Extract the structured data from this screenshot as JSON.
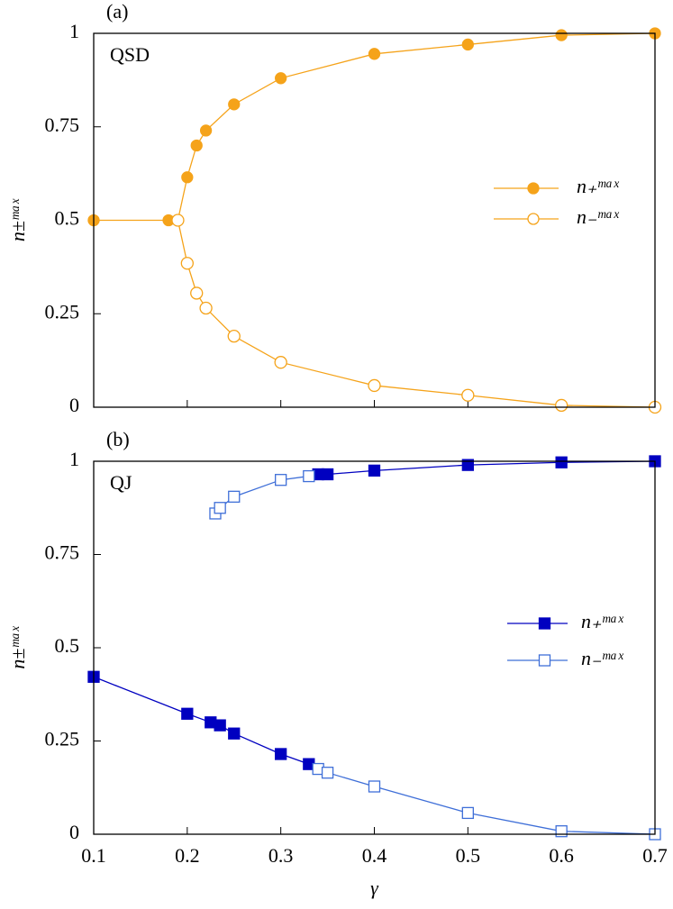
{
  "chart_data": [
    {
      "type": "line",
      "panel_label": "(a)",
      "annotation": "QSD",
      "ylabel": "n±ᵐᵃˣ",
      "xlim": [
        0.1,
        0.7
      ],
      "xticks": [
        0.1,
        0.2,
        0.3,
        0.4,
        0.5,
        0.6,
        0.7
      ],
      "xtick_labels": false,
      "ylim": [
        0,
        1
      ],
      "yticks": [
        0,
        0.25,
        0.5,
        0.75,
        1
      ],
      "legend": "right",
      "series": [
        {
          "name": "n₊ᵐᵃˣ",
          "color": "#f5a31a",
          "marker": "circle",
          "filled": true,
          "x": [
            0.1,
            0.18,
            0.19,
            0.2,
            0.21,
            0.22,
            0.25,
            0.3,
            0.4,
            0.5,
            0.6,
            0.7
          ],
          "values": [
            0.5,
            0.5,
            0.5,
            0.615,
            0.7,
            0.74,
            0.81,
            0.88,
            0.945,
            0.97,
            0.995,
            1.0
          ]
        },
        {
          "name": "n₋ᵐᵃˣ",
          "color": "#f5a31a",
          "marker": "circle",
          "filled": false,
          "x": [
            0.19,
            0.2,
            0.21,
            0.22,
            0.25,
            0.3,
            0.4,
            0.5,
            0.6,
            0.7
          ],
          "values": [
            0.5,
            0.385,
            0.305,
            0.265,
            0.19,
            0.12,
            0.058,
            0.032,
            0.005,
            0.0
          ]
        }
      ]
    },
    {
      "type": "line",
      "panel_label": "(b)",
      "annotation": "QJ",
      "ylabel": "n±ᵐᵃˣ",
      "xlabel": "γ",
      "xlim": [
        0.1,
        0.7
      ],
      "xticks": [
        0.1,
        0.2,
        0.3,
        0.4,
        0.5,
        0.6,
        0.7
      ],
      "xtick_labels": true,
      "ylim": [
        0,
        1
      ],
      "yticks": [
        0,
        0.25,
        0.5,
        0.75,
        1
      ],
      "legend": "right",
      "series": [
        {
          "name": "n₊ᵐᵃˣ",
          "color": "#0000c0",
          "marker": "square",
          "filled": true,
          "x": [
            0.1,
            0.2,
            0.225,
            0.235,
            0.25,
            0.3,
            0.33,
            0.335,
            0.34,
            0.35,
            0.4,
            0.5,
            0.6,
            0.7
          ],
          "values": [
            0.422,
            0.323,
            0.3,
            0.292,
            0.27,
            0.215,
            0.188,
            null,
            0.965,
            0.965,
            0.975,
            0.99,
            0.997,
            1.0
          ]
        },
        {
          "name": "n₋ᵐᵃˣ",
          "color": "#3f6fd8",
          "marker": "square",
          "filled": false,
          "x": [
            0.23,
            0.235,
            0.25,
            0.3,
            0.33,
            0.335,
            0.34,
            0.35,
            0.4,
            0.5,
            0.6,
            0.7
          ],
          "values": [
            0.86,
            0.875,
            0.905,
            0.95,
            0.96,
            null,
            0.175,
            0.165,
            0.128,
            0.057,
            0.008,
            0.0
          ]
        }
      ]
    }
  ]
}
